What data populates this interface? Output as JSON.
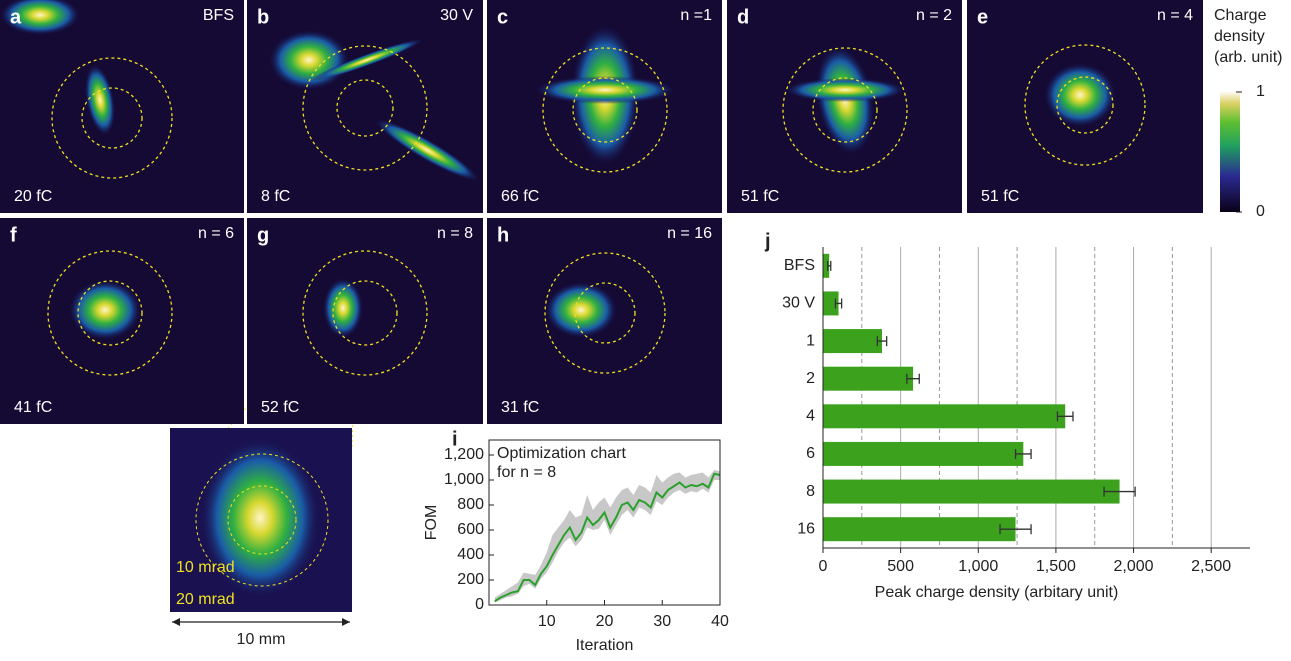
{
  "panels": [
    {
      "label": "a",
      "top_right": "BFS",
      "charge": "20 fC"
    },
    {
      "label": "b",
      "top_right": "30 V",
      "charge": "8 fC"
    },
    {
      "label": "c",
      "top_right": "n =1",
      "charge": "66 fC"
    },
    {
      "label": "d",
      "top_right": "n = 2",
      "charge": "51 fC"
    },
    {
      "label": "e",
      "top_right": "n = 4",
      "charge": "51 fC"
    },
    {
      "label": "f",
      "top_right": "n = 6",
      "charge": "41 fC"
    },
    {
      "label": "g",
      "top_right": "n = 8",
      "charge": "52 fC"
    },
    {
      "label": "h",
      "top_right": "n = 16",
      "charge": "31 fC"
    }
  ],
  "zoom": {
    "rings": [
      "10 mrad",
      "20 mrad"
    ],
    "scale": "10 mm"
  },
  "colorbar": {
    "title": [
      "Charge",
      "density",
      "(arb. unit)"
    ],
    "ticks": [
      0,
      1
    ]
  },
  "chart_data": [
    {
      "type": "line",
      "label": "i",
      "annotation": [
        "Optimization chart",
        "for n = 8"
      ],
      "x_label": "Iteration",
      "y_label": "FOM",
      "x": [
        1,
        2,
        3,
        4,
        5,
        6,
        7,
        8,
        9,
        10,
        11,
        12,
        13,
        14,
        15,
        16,
        17,
        18,
        19,
        20,
        21,
        22,
        23,
        24,
        25,
        26,
        27,
        28,
        29,
        30,
        31,
        32,
        33,
        34,
        35,
        36,
        37,
        38,
        39,
        40
      ],
      "values": [
        30,
        60,
        80,
        100,
        110,
        200,
        200,
        160,
        250,
        310,
        400,
        480,
        560,
        620,
        520,
        580,
        700,
        640,
        680,
        740,
        620,
        700,
        800,
        820,
        760,
        840,
        820,
        780,
        900,
        860,
        920,
        950,
        980,
        940,
        960,
        950,
        970,
        940,
        1050,
        1040
      ],
      "lower": [
        20,
        40,
        60,
        70,
        90,
        150,
        170,
        130,
        210,
        260,
        340,
        430,
        500,
        540,
        470,
        520,
        620,
        600,
        610,
        680,
        560,
        640,
        720,
        760,
        700,
        780,
        760,
        720,
        830,
        800,
        860,
        900,
        920,
        890,
        910,
        900,
        930,
        900,
        1000,
        1000
      ],
      "upper": [
        60,
        90,
        120,
        150,
        180,
        260,
        250,
        240,
        320,
        420,
        560,
        620,
        680,
        760,
        700,
        720,
        880,
        760,
        820,
        860,
        780,
        860,
        920,
        940,
        880,
        960,
        940,
        900,
        1040,
        980,
        1020,
        1050,
        1060,
        1020,
        1040,
        1050,
        1060,
        1020,
        1080,
        1070
      ],
      "color": "#2ca02c",
      "band_color": "#c8c8c8",
      "xlim": [
        0,
        40
      ],
      "xticks": [
        10,
        20,
        30,
        40
      ],
      "ylim": [
        0,
        1320
      ],
      "yticks": [
        0,
        200,
        400,
        600,
        800,
        {
          "value": 1000,
          "label": "1,000"
        },
        {
          "value": 1200,
          "label": "1,200"
        }
      ]
    },
    {
      "type": "hbar",
      "label": "j",
      "x_label": "Peak charge density (arbitary unit)",
      "categories": [
        "BFS",
        "30 V",
        "1",
        "2",
        "4",
        "6",
        "8",
        "16"
      ],
      "values": [
        40,
        100,
        380,
        580,
        1560,
        1290,
        1910,
        1240
      ],
      "errors": [
        10,
        20,
        30,
        40,
        50,
        50,
        100,
        100
      ],
      "color": "#3ca21e",
      "grid": true,
      "xlim": [
        0,
        2750
      ],
      "xticks": [
        0,
        500,
        {
          "value": 1000,
          "label": "1,000"
        },
        {
          "value": 1500,
          "label": "1,500"
        },
        {
          "value": 2000,
          "label": "2,000"
        },
        {
          "value": 2500,
          "label": "2,500"
        }
      ],
      "xminor": [
        250,
        750,
        1250,
        1750,
        2250
      ]
    }
  ]
}
